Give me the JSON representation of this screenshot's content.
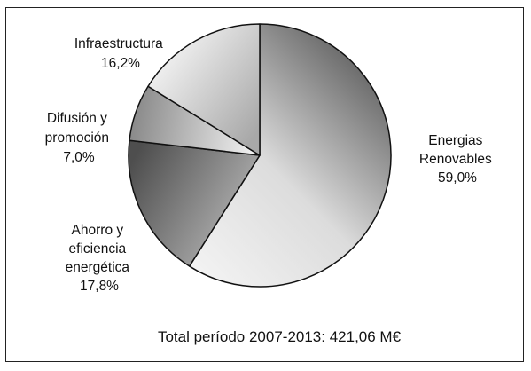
{
  "chart_data": {
    "type": "pie",
    "slices": [
      {
        "label_lines": [
          "Energias",
          "Renovables"
        ],
        "value_text": "59,0%",
        "value": 59.0
      },
      {
        "label_lines": [
          "Ahorro y",
          "eficiencia",
          "energética"
        ],
        "value_text": "17,8%",
        "value": 17.8
      },
      {
        "label_lines": [
          "Difusión y",
          "promoción"
        ],
        "value_text": "7,0%",
        "value": 7.0
      },
      {
        "label_lines": [
          "Infraestructura"
        ],
        "value_text": "16,2%",
        "value": 16.2
      }
    ],
    "total_text": "Total período 2007-2013: 421,06 M€",
    "colors": {
      "edge": "#111111",
      "light": "#f4f4f4",
      "dark": "#5a5a5a"
    }
  }
}
